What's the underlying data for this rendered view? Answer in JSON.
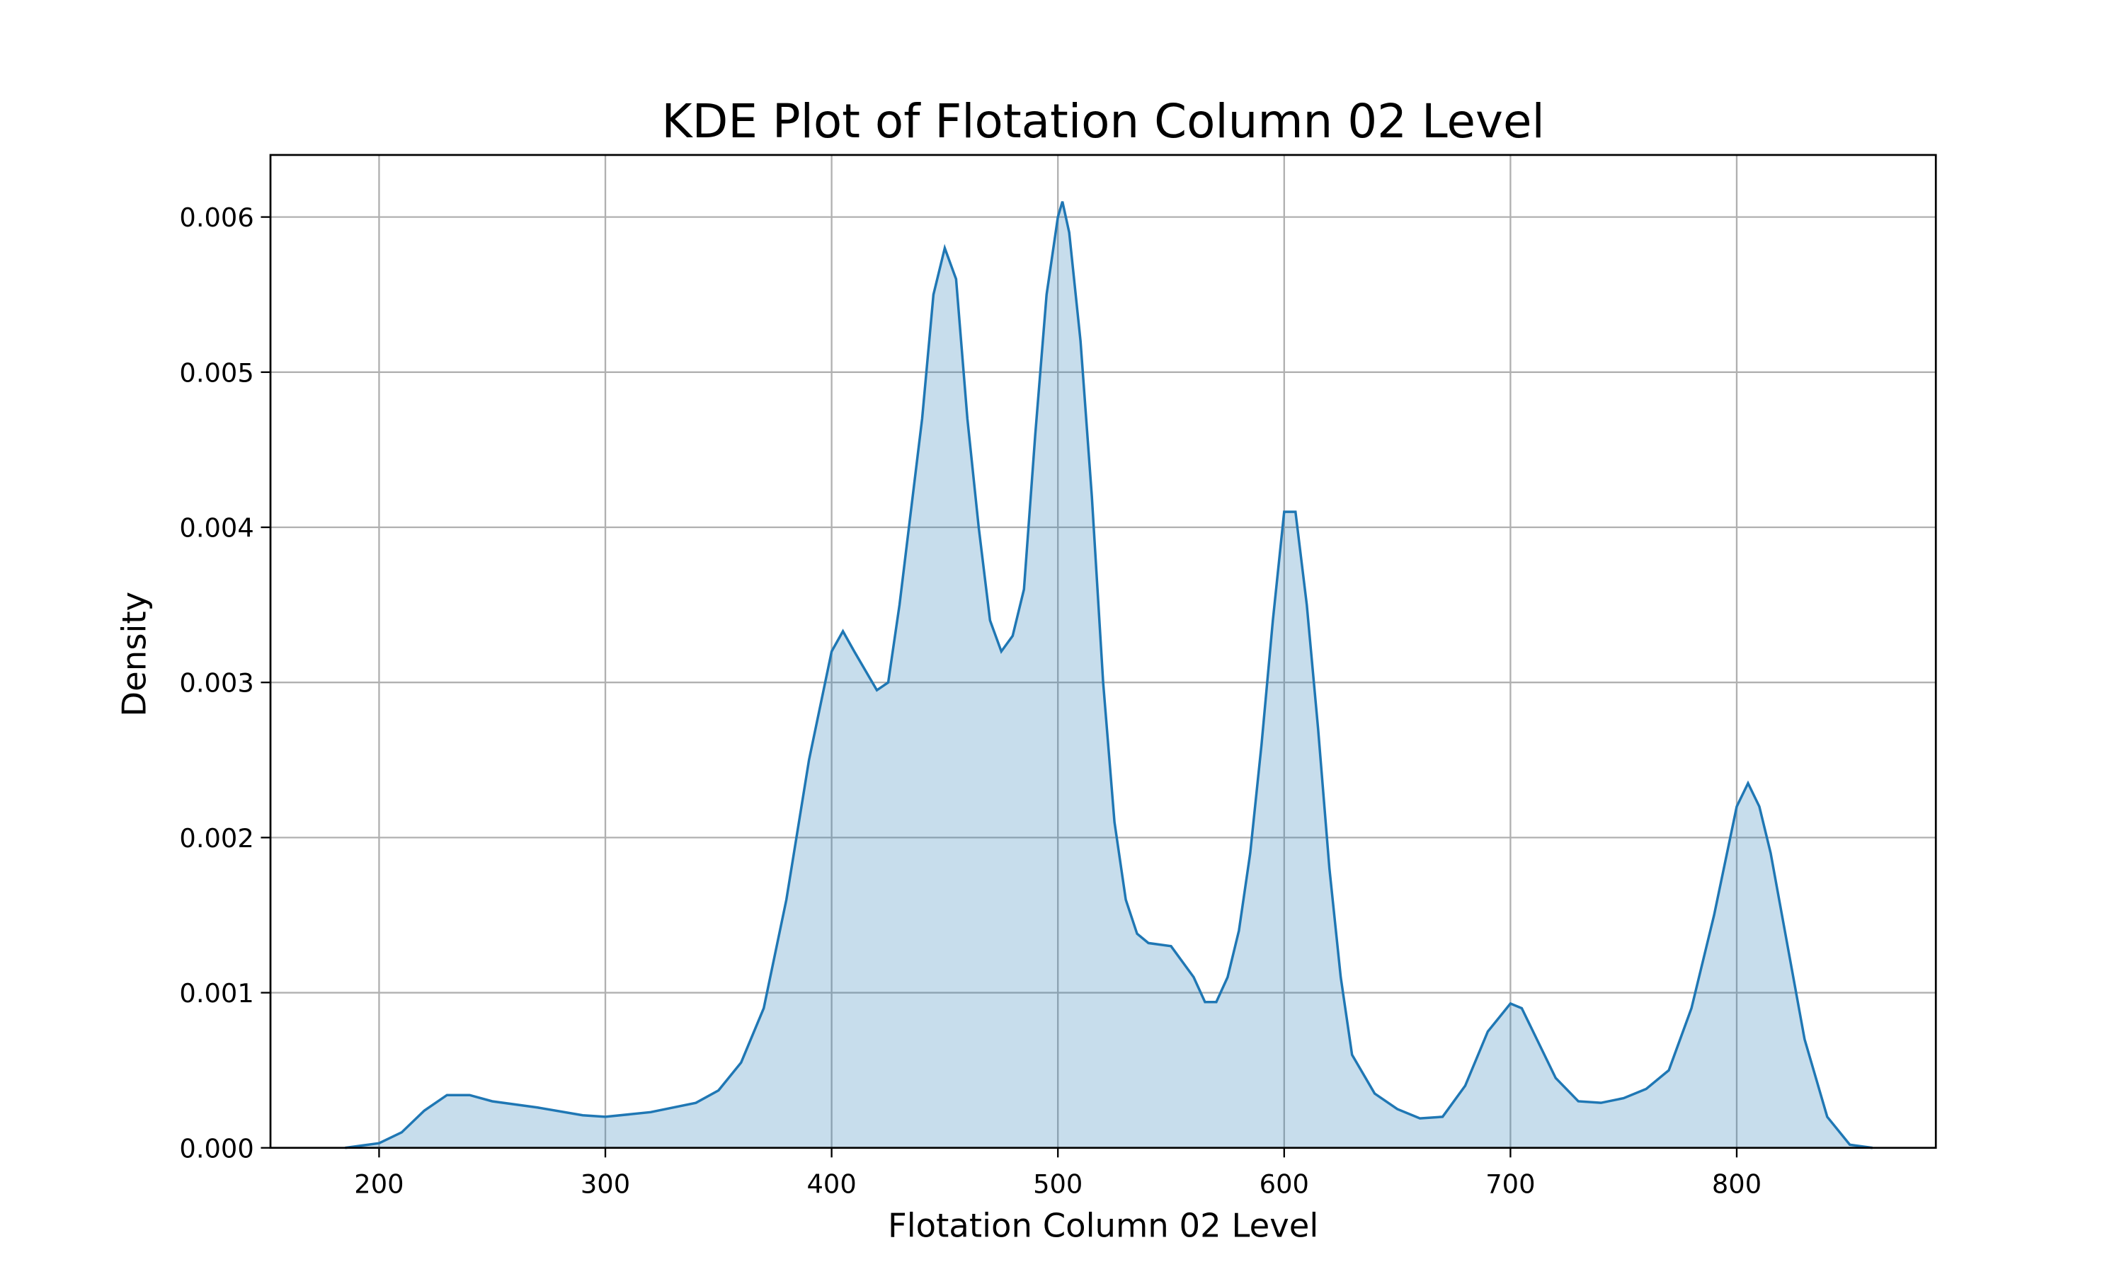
{
  "chart_data": {
    "type": "area",
    "title": "KDE Plot of Flotation Column 02 Level",
    "x_label": "Flotation Column 02 Level",
    "y_label": "Density",
    "x": [
      185,
      200,
      210,
      220,
      230,
      240,
      250,
      270,
      290,
      300,
      320,
      340,
      350,
      360,
      370,
      380,
      390,
      400,
      405,
      410,
      420,
      425,
      430,
      440,
      445,
      450,
      455,
      460,
      465,
      470,
      475,
      480,
      485,
      490,
      495,
      500,
      502,
      505,
      510,
      515,
      520,
      525,
      530,
      535,
      540,
      550,
      560,
      565,
      570,
      575,
      580,
      585,
      590,
      595,
      600,
      605,
      610,
      615,
      620,
      625,
      630,
      640,
      650,
      660,
      670,
      680,
      690,
      700,
      705,
      710,
      720,
      730,
      740,
      750,
      760,
      770,
      780,
      790,
      800,
      805,
      810,
      815,
      820,
      830,
      840,
      850,
      860
    ],
    "values": [
      0,
      3e-05,
      0.0001,
      0.00024,
      0.00034,
      0.00034,
      0.0003,
      0.00026,
      0.00021,
      0.0002,
      0.00023,
      0.00029,
      0.00037,
      0.00055,
      0.0009,
      0.0016,
      0.0025,
      0.0032,
      0.00333,
      0.0032,
      0.00295,
      0.003,
      0.0035,
      0.0047,
      0.0055,
      0.0058,
      0.0056,
      0.0047,
      0.004,
      0.0034,
      0.0032,
      0.0033,
      0.0036,
      0.0046,
      0.0055,
      0.006,
      0.0061,
      0.0059,
      0.0052,
      0.0042,
      0.003,
      0.0021,
      0.0016,
      0.00138,
      0.00132,
      0.0013,
      0.0011,
      0.00094,
      0.00094,
      0.0011,
      0.0014,
      0.0019,
      0.0026,
      0.0034,
      0.0041,
      0.0041,
      0.0035,
      0.0027,
      0.0018,
      0.0011,
      0.0006,
      0.00035,
      0.00025,
      0.00019,
      0.0002,
      0.0004,
      0.00075,
      0.00093,
      0.0009,
      0.00075,
      0.00045,
      0.0003,
      0.00029,
      0.00032,
      0.00038,
      0.0005,
      0.0009,
      0.0015,
      0.0022,
      0.00235,
      0.0022,
      0.0019,
      0.0015,
      0.0007,
      0.0002,
      2e-05,
      0
    ],
    "color": "#1f77b4",
    "xlim": [
      152,
      888
    ],
    "ylim": [
      0,
      0.0064
    ],
    "xticks": [
      200,
      300,
      400,
      500,
      600,
      700,
      800
    ],
    "yticks": [
      {
        "value": 0,
        "label": "0.000"
      },
      0.001,
      0.002,
      0.003,
      0.004,
      0.005,
      0.006
    ],
    "grid": true
  }
}
